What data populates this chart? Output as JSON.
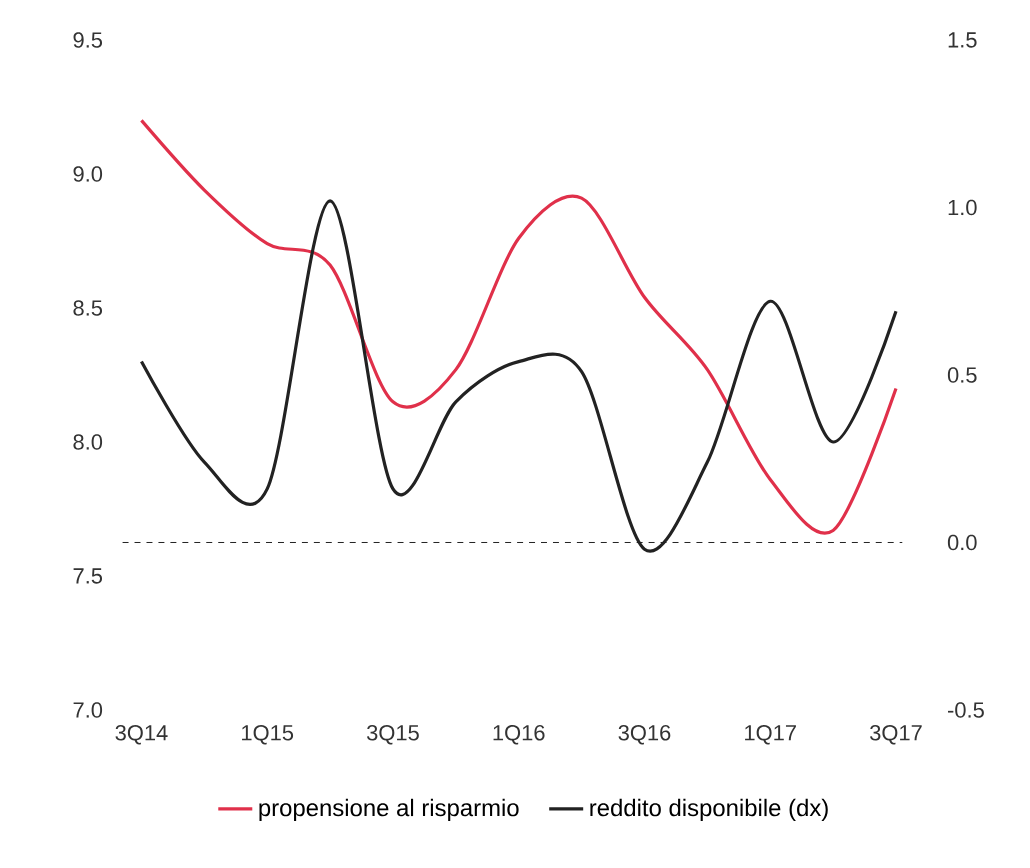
{
  "chart_data": {
    "type": "line",
    "categories": [
      "3Q14",
      null,
      "1Q15",
      null,
      "3Q15",
      null,
      "1Q16",
      null,
      "3Q16",
      null,
      "1Q17",
      null,
      "3Q17"
    ],
    "series": [
      {
        "name": "propensione al risparmio",
        "color": "#e0304a",
        "values": [
          9.2,
          8.94,
          8.74,
          8.66,
          8.15,
          8.27,
          8.76,
          8.91,
          8.54,
          8.27,
          7.86,
          7.67,
          8.2
        ]
      },
      {
        "name": "reddito disponibile (dx)",
        "color": "#222222",
        "axis": "y2",
        "values": [
          0.54,
          0.24,
          0.16,
          1.02,
          0.16,
          0.42,
          0.54,
          0.51,
          -0.02,
          0.24,
          0.72,
          0.3,
          0.69
        ]
      }
    ],
    "ylim": [
      7.0,
      9.5
    ],
    "yticks": [
      {
        "value": 7,
        "label": "7.0"
      },
      {
        "value": 7.5,
        "label": "7.5"
      },
      {
        "value": 8,
        "label": "8.0"
      },
      {
        "value": 8.5,
        "label": "8.5"
      },
      {
        "value": 9,
        "label": "9.0"
      },
      {
        "value": 9.5,
        "label": "9.5"
      }
    ],
    "y2lim": [
      -0.5,
      1.5
    ],
    "y2ticks": [
      -0.5,
      {
        "value": 0,
        "label": "0.0"
      },
      0.5,
      {
        "value": 1,
        "label": "1.0"
      },
      1.5
    ],
    "ref_lines": [
      {
        "axis": "y2",
        "value": 0,
        "color": "#222222",
        "line_style": "dashed"
      }
    ],
    "legend": "bottom",
    "grid": false,
    "marker": "none",
    "line_style": "solid"
  }
}
